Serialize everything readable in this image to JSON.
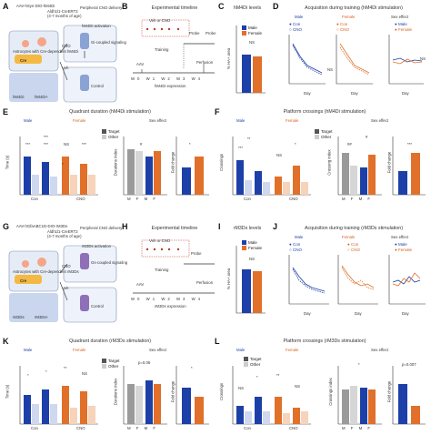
{
  "colors": {
    "male": "#1d3fa8",
    "female": "#e0702a",
    "grey": "#9a9a9a",
    "lightgrey": "#d6d6d6",
    "light_blue": "#cfd8ef",
    "light_orange": "#f6d3ba"
  },
  "row1": {
    "A": {
      "letter": "A",
      "top_left": "AAV-hSyn-DIO-hM4Di",
      "top_left2": "Aldh1l1-CreERT2",
      "top_left3": "(4-7 months of age)",
      "top_right": "Peripheral CNO delivery",
      "astro": "Astrocytes with Cre-dependent hM4Di",
      "cre": "Cre",
      "cno": "CNO",
      "veh": "Veh",
      "hm4d_activation": "hM4Di activation",
      "gi": "Gi-coupled signaling",
      "control": "Control",
      "extra": "Extracellular",
      "intra": "Intracellular",
      "hm4di": "hM4Di",
      "hm4di_plus": "hM4Di+"
    },
    "B": {
      "letter": "B",
      "title": "Experimental timeline",
      "veh_cno": "Veh or CNO",
      "probe": "Probe",
      "training": "Training",
      "aav": "AAV",
      "perfusion": "Perfusion",
      "weeks": [
        "W0",
        "W1",
        "W2",
        "W3",
        "W4",
        "D1",
        "D5",
        "D6",
        "D7",
        "D8"
      ],
      "expression": "hM4Di expression"
    },
    "C": {
      "letter": "C",
      "title": "hM4Di levels",
      "legend_male": "Male",
      "legend_female": "Female",
      "ylabel": "% HA+ area",
      "ns": "NS",
      "yticks": [
        "0",
        "20",
        "40",
        "60"
      ]
    },
    "D": {
      "letter": "D",
      "title": "Acquisition during training (hM4Di stimulation)",
      "male": "Male",
      "female": "Female",
      "sex": "Sex effect",
      "con": "Con",
      "cno": "CNO",
      "ylabel": "Distance (cm)",
      "ylabel2": "Fold change",
      "xlabel": "Day",
      "ns": "NS",
      "xticks": [
        "1",
        "2",
        "3",
        "4",
        "5"
      ]
    }
  },
  "row2": {
    "E": {
      "letter": "E",
      "title": "Quadrant duration (hM4Di stimulation)",
      "male": "Male",
      "female": "Female",
      "sex": "Sex effect",
      "target": "Target",
      "other": "Other",
      "ylabel": "Time (s)",
      "ylabel2": "Durations index",
      "ylabel3": "Fold change",
      "xcats": [
        "Con",
        "CNO"
      ],
      "sexcats": [
        "M",
        "F",
        "M",
        "F"
      ],
      "stars": [
        "***",
        "***",
        "NS",
        "***",
        "*",
        "***",
        "#",
        "*"
      ]
    },
    "F": {
      "letter": "F",
      "title": "Platform crossings (hM4Di stimulation)",
      "male": "Male",
      "female": "Female",
      "sex": "Sex effect",
      "target": "Target",
      "other": "Other",
      "ylabel": "Crossings",
      "ylabel2": "Crossing index",
      "ylabel3": "Fold change",
      "xcats": [
        "Con",
        "CNO"
      ],
      "sexcats": [
        "M",
        "F",
        "M",
        "F"
      ],
      "stars": [
        "***",
        "**",
        "NS",
        "*",
        "##",
        "#",
        "***"
      ]
    }
  },
  "row3": {
    "G": {
      "letter": "G",
      "top_left": "AAV-hGfaABC1D-DIO-rM3Ds",
      "top_left2": "Aldh1l1-CreERT2",
      "top_left3": "(4-7 months of age)",
      "top_right": "Peripheral CNO delivery",
      "astro": "Astrocytes with Cre-dependent rM3Ds",
      "cre": "Cre",
      "cno": "CNO",
      "veh": "Veh",
      "activation": "rM3Ds activation",
      "gs": "Gs-coupled signaling",
      "control": "Control",
      "rm3ds": "rM3Ds",
      "rm3ds_plus": "rM3Ds+"
    },
    "H": {
      "letter": "H",
      "title": "Experimental timeline",
      "veh_cno": "Veh or CNO",
      "probe": "Probe",
      "training": "Training",
      "aav": "AAV",
      "perfusion": "Perfusion",
      "weeks": [
        "W0",
        "W1",
        "W2",
        "W3",
        "W4",
        "D1",
        "D5",
        "D6",
        "D7",
        "D8"
      ],
      "expression": "rM3Ds expression"
    },
    "I": {
      "letter": "I",
      "title": "rM3Ds levels",
      "legend_male": "Male",
      "legend_female": "Female",
      "ylabel": "% HA+ area",
      "ns": "NS",
      "yticks": [
        "0",
        "50",
        "100"
      ]
    },
    "J": {
      "letter": "J",
      "title": "Acquisition during training (rM3Ds stimulation)",
      "male": "Male",
      "female": "Female",
      "sex": "Sex effect",
      "con": "Con",
      "cno": "CNO",
      "ylabel": "Distance (cm)",
      "ylabel2": "Fold change",
      "xlabel": "Day",
      "xticks": [
        "1",
        "2",
        "3",
        "4",
        "5",
        "6"
      ]
    }
  },
  "row4": {
    "K": {
      "letter": "K",
      "title": "Quadrant duration (rM3Ds stimulation)",
      "male": "Male",
      "female": "Female",
      "sex": "Sex effect",
      "target": "Target",
      "other": "Other",
      "ylabel": "Time (s)",
      "ylabel2": "Durations index",
      "ylabel3": "Fold change",
      "xcats": [
        "Con",
        "CNO"
      ],
      "sexcats": [
        "M",
        "F",
        "M",
        "F"
      ],
      "stars": [
        "*",
        "*",
        "**",
        "NS",
        "p=0.06",
        "*"
      ]
    },
    "L": {
      "letter": "L",
      "title": "Platform crossings (rM3Ds stimulation)",
      "male": "Male",
      "female": "Female",
      "sex": "Sex effect",
      "target": "Target",
      "other": "Other",
      "ylabel": "Crossings",
      "ylabel2": "Crossings index",
      "ylabel3": "Fold change",
      "xcats": [
        "Con",
        "CNO"
      ],
      "sexcats": [
        "M",
        "F",
        "M",
        "F"
      ],
      "stars": [
        "NS",
        "*",
        "**",
        "NS",
        "*",
        "p=0.007"
      ]
    }
  }
}
